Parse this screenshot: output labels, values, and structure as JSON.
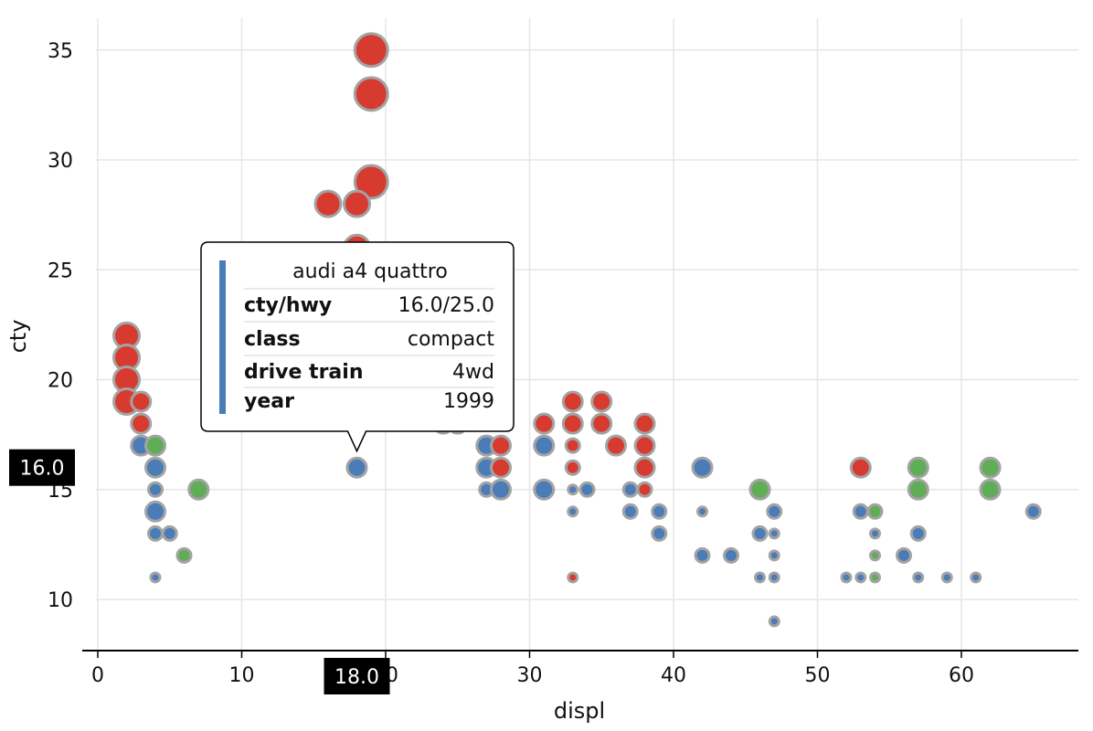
{
  "chart_data": {
    "type": "scatter",
    "xlabel": "displ",
    "ylabel": "cty",
    "xlim": [
      -1,
      68
    ],
    "ylim": [
      7.8,
      37
    ],
    "x_ticks": [
      0,
      10,
      20,
      30,
      40,
      50,
      60
    ],
    "y_ticks": [
      10,
      15,
      20,
      25,
      30,
      35
    ],
    "grid": true,
    "colors": {
      "front": "#d73b2f",
      "rear": "#5fad55",
      "fwd": "#4a7cb8",
      "outline": "#a3a3a3"
    },
    "points": [
      {
        "x": 2,
        "y": 22,
        "c": "front",
        "s": 3
      },
      {
        "x": 2,
        "y": 21,
        "c": "front",
        "s": 3
      },
      {
        "x": 2,
        "y": 20,
        "c": "front",
        "s": 3
      },
      {
        "x": 2,
        "y": 19,
        "c": "front",
        "s": 3
      },
      {
        "x": 3,
        "y": 19,
        "c": "front",
        "s": 2
      },
      {
        "x": 3,
        "y": 18,
        "c": "front",
        "s": 2
      },
      {
        "x": 3,
        "y": 17,
        "c": "fwd",
        "s": 2
      },
      {
        "x": 4,
        "y": 17,
        "c": "rear",
        "s": 2
      },
      {
        "x": 4,
        "y": 16,
        "c": "fwd",
        "s": 2
      },
      {
        "x": 4,
        "y": 15,
        "c": "fwd",
        "s": 1
      },
      {
        "x": 4,
        "y": 14,
        "c": "fwd",
        "s": 2
      },
      {
        "x": 4,
        "y": 13,
        "c": "fwd",
        "s": 1
      },
      {
        "x": 5,
        "y": 13,
        "c": "fwd",
        "s": 1
      },
      {
        "x": 4,
        "y": 11,
        "c": "fwd",
        "s": 0
      },
      {
        "x": 6,
        "y": 12,
        "c": "rear",
        "s": 1
      },
      {
        "x": 7,
        "y": 15,
        "c": "rear",
        "s": 2
      },
      {
        "x": 19,
        "y": 35,
        "c": "front",
        "s": 4
      },
      {
        "x": 19,
        "y": 33,
        "c": "front",
        "s": 4
      },
      {
        "x": 19,
        "y": 29,
        "c": "front",
        "s": 4
      },
      {
        "x": 16,
        "y": 28,
        "c": "front",
        "s": 3
      },
      {
        "x": 18,
        "y": 28,
        "c": "front",
        "s": 3
      },
      {
        "x": 18,
        "y": 26,
        "c": "front",
        "s": 3
      },
      {
        "x": 24,
        "y": 18,
        "c": "front",
        "s": 2
      },
      {
        "x": 25,
        "y": 18,
        "c": "front",
        "s": 2
      },
      {
        "x": 18,
        "y": 16,
        "c": "fwd",
        "s": 2
      },
      {
        "x": 27,
        "y": 17,
        "c": "fwd",
        "s": 2
      },
      {
        "x": 28,
        "y": 17,
        "c": "front",
        "s": 2
      },
      {
        "x": 27,
        "y": 16,
        "c": "fwd",
        "s": 2
      },
      {
        "x": 28,
        "y": 16,
        "c": "front",
        "s": 2
      },
      {
        "x": 27,
        "y": 15,
        "c": "fwd",
        "s": 1
      },
      {
        "x": 28,
        "y": 15,
        "c": "fwd",
        "s": 2
      },
      {
        "x": 31,
        "y": 18,
        "c": "front",
        "s": 2
      },
      {
        "x": 31,
        "y": 17,
        "c": "fwd",
        "s": 2
      },
      {
        "x": 31,
        "y": 15,
        "c": "fwd",
        "s": 2
      },
      {
        "x": 33,
        "y": 19,
        "c": "front",
        "s": 2
      },
      {
        "x": 33,
        "y": 18,
        "c": "front",
        "s": 2
      },
      {
        "x": 33,
        "y": 17,
        "c": "front",
        "s": 1
      },
      {
        "x": 33,
        "y": 16,
        "c": "front",
        "s": 1
      },
      {
        "x": 33,
        "y": 15,
        "c": "fwd",
        "s": 0
      },
      {
        "x": 34,
        "y": 15,
        "c": "fwd",
        "s": 1
      },
      {
        "x": 33,
        "y": 14,
        "c": "fwd",
        "s": 0
      },
      {
        "x": 33,
        "y": 11,
        "c": "front",
        "s": 0
      },
      {
        "x": 35,
        "y": 19,
        "c": "front",
        "s": 2
      },
      {
        "x": 35,
        "y": 18,
        "c": "front",
        "s": 2
      },
      {
        "x": 36,
        "y": 17,
        "c": "front",
        "s": 2
      },
      {
        "x": 38,
        "y": 18,
        "c": "front",
        "s": 2
      },
      {
        "x": 38,
        "y": 17,
        "c": "front",
        "s": 2
      },
      {
        "x": 38,
        "y": 16,
        "c": "front",
        "s": 2
      },
      {
        "x": 38,
        "y": 15,
        "c": "front",
        "s": 1
      },
      {
        "x": 37,
        "y": 15,
        "c": "fwd",
        "s": 1
      },
      {
        "x": 37,
        "y": 14,
        "c": "fwd",
        "s": 1
      },
      {
        "x": 39,
        "y": 14,
        "c": "fwd",
        "s": 1
      },
      {
        "x": 39,
        "y": 13,
        "c": "fwd",
        "s": 1
      },
      {
        "x": 42,
        "y": 16,
        "c": "fwd",
        "s": 2
      },
      {
        "x": 42,
        "y": 14,
        "c": "fwd",
        "s": 0
      },
      {
        "x": 42,
        "y": 12,
        "c": "fwd",
        "s": 1
      },
      {
        "x": 44,
        "y": 12,
        "c": "fwd",
        "s": 1
      },
      {
        "x": 46,
        "y": 15,
        "c": "rear",
        "s": 2
      },
      {
        "x": 46,
        "y": 13,
        "c": "fwd",
        "s": 1
      },
      {
        "x": 46,
        "y": 11,
        "c": "fwd",
        "s": 0
      },
      {
        "x": 47,
        "y": 14,
        "c": "fwd",
        "s": 1
      },
      {
        "x": 47,
        "y": 13,
        "c": "fwd",
        "s": 0
      },
      {
        "x": 47,
        "y": 12,
        "c": "fwd",
        "s": 0
      },
      {
        "x": 47,
        "y": 11,
        "c": "fwd",
        "s": 0
      },
      {
        "x": 47,
        "y": 9,
        "c": "fwd",
        "s": 0
      },
      {
        "x": 53,
        "y": 16,
        "c": "front",
        "s": 2
      },
      {
        "x": 53,
        "y": 14,
        "c": "fwd",
        "s": 1
      },
      {
        "x": 54,
        "y": 14,
        "c": "rear",
        "s": 1
      },
      {
        "x": 54,
        "y": 13,
        "c": "fwd",
        "s": 0
      },
      {
        "x": 54,
        "y": 12,
        "c": "rear",
        "s": 0
      },
      {
        "x": 52,
        "y": 11,
        "c": "fwd",
        "s": 0
      },
      {
        "x": 53,
        "y": 11,
        "c": "fwd",
        "s": 0
      },
      {
        "x": 54,
        "y": 11,
        "c": "rear",
        "s": 0
      },
      {
        "x": 56,
        "y": 12,
        "c": "fwd",
        "s": 1
      },
      {
        "x": 57,
        "y": 16,
        "c": "rear",
        "s": 2
      },
      {
        "x": 57,
        "y": 15,
        "c": "rear",
        "s": 2
      },
      {
        "x": 57,
        "y": 13,
        "c": "fwd",
        "s": 1
      },
      {
        "x": 57,
        "y": 11,
        "c": "fwd",
        "s": 0
      },
      {
        "x": 59,
        "y": 11,
        "c": "fwd",
        "s": 0
      },
      {
        "x": 61,
        "y": 11,
        "c": "fwd",
        "s": 0
      },
      {
        "x": 62,
        "y": 16,
        "c": "rear",
        "s": 2
      },
      {
        "x": 62,
        "y": 15,
        "c": "rear",
        "s": 2
      },
      {
        "x": 65,
        "y": 14,
        "c": "fwd",
        "s": 1
      }
    ],
    "highlight": {
      "x": 18,
      "y": 16,
      "x_label": "18.0",
      "y_label": "16.0"
    },
    "tooltip": {
      "title": "audi a4 quattro",
      "accent_color": "#4a7cb8",
      "rows": [
        {
          "key": "cty/hwy",
          "value": "16.0/25.0"
        },
        {
          "key": "class",
          "value": "compact"
        },
        {
          "key": "drive train",
          "value": "4wd"
        },
        {
          "key": "year",
          "value": "1999"
        }
      ]
    }
  }
}
